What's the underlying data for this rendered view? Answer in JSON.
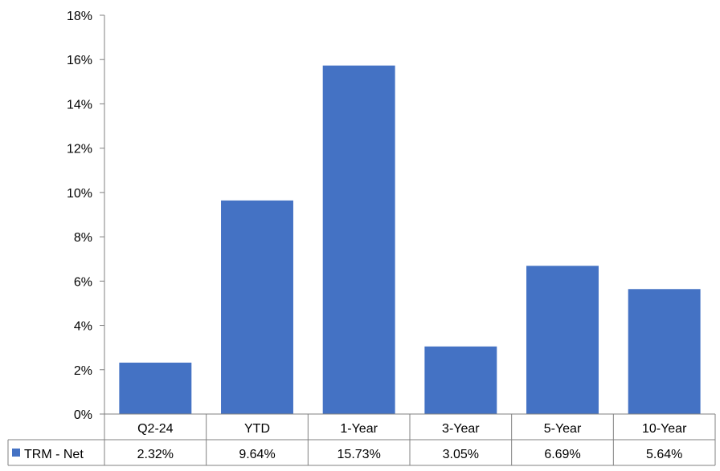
{
  "chart_data": {
    "type": "bar",
    "categories": [
      "Q2-24",
      "YTD",
      "1-Year",
      "3-Year",
      "5-Year",
      "10-Year"
    ],
    "series": [
      {
        "name": "TRM - Net",
        "values": [
          2.32,
          9.64,
          15.73,
          3.05,
          6.69,
          5.64
        ],
        "value_labels": [
          "2.32%",
          "9.64%",
          "15.73%",
          "3.05%",
          "6.69%",
          "5.64%"
        ],
        "color": "#4472C4"
      }
    ],
    "ylim": [
      0,
      18
    ],
    "ytick_labels": [
      "0%",
      "2%",
      "4%",
      "6%",
      "8%",
      "10%",
      "12%",
      "14%",
      "16%",
      "18%"
    ],
    "grid": false,
    "legend": "data-table-left",
    "data_table": true,
    "axis_color": "#808080"
  }
}
